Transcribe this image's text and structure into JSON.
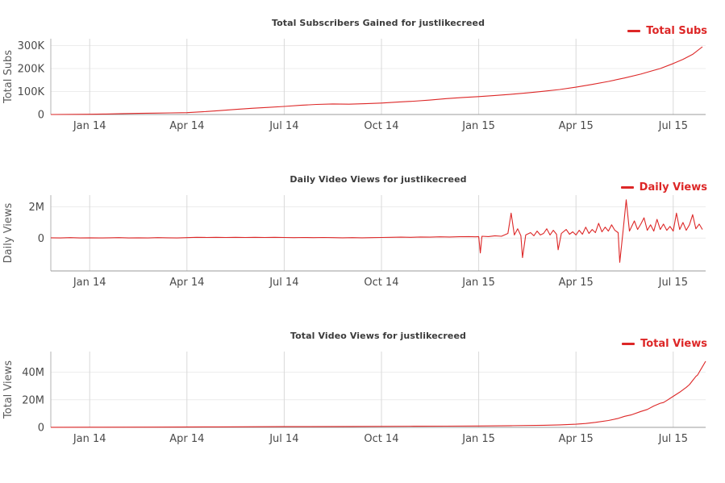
{
  "page": {
    "background": "#ffffff",
    "accent_red": "#dd2727",
    "channel": "justlikecreed"
  },
  "x_axis": {
    "domain_months": [
      -1.2,
      19.0
    ],
    "ticks": [
      {
        "m": 0,
        "label": "Jan 14"
      },
      {
        "m": 3,
        "label": "Apr 14"
      },
      {
        "m": 6,
        "label": "Jul 14"
      },
      {
        "m": 9,
        "label": "Oct 14"
      },
      {
        "m": 12,
        "label": "Jan 15"
      },
      {
        "m": 15,
        "label": "Apr 15"
      },
      {
        "m": 18,
        "label": "Jul 15"
      }
    ]
  },
  "chart_data": [
    {
      "id": "total-subs",
      "type": "line",
      "title": "Total Subscribers Gained for justlikecreed",
      "ylabel": "Total Subs",
      "legend_label": "Total Subs",
      "color": "#dd2727",
      "point_unit": "thousands of subscribers",
      "ymin": 0,
      "ymax": 330,
      "y_ticks": [
        {
          "v": 0,
          "label": "0"
        },
        {
          "v": 100,
          "label": "100K"
        },
        {
          "v": 200,
          "label": "200K"
        },
        {
          "v": 300,
          "label": "300K"
        }
      ],
      "points": [
        [
          -1.2,
          0
        ],
        [
          0,
          1
        ],
        [
          0.5,
          2
        ],
        [
          1,
          4
        ],
        [
          1.5,
          5
        ],
        [
          2,
          6
        ],
        [
          2.5,
          7
        ],
        [
          3,
          8
        ],
        [
          3.5,
          12
        ],
        [
          4,
          17
        ],
        [
          4.5,
          22
        ],
        [
          5,
          27
        ],
        [
          5.5,
          31
        ],
        [
          6,
          35
        ],
        [
          6.5,
          40
        ],
        [
          7,
          44
        ],
        [
          7.5,
          46
        ],
        [
          8,
          45
        ],
        [
          8.5,
          47
        ],
        [
          9,
          50
        ],
        [
          9.5,
          54
        ],
        [
          10,
          58
        ],
        [
          10.5,
          63
        ],
        [
          11,
          69
        ],
        [
          11.5,
          74
        ],
        [
          12,
          78
        ],
        [
          12.5,
          83
        ],
        [
          13,
          88
        ],
        [
          13.5,
          94
        ],
        [
          14,
          101
        ],
        [
          14.5,
          109
        ],
        [
          15,
          119
        ],
        [
          15.5,
          131
        ],
        [
          16,
          144
        ],
        [
          16.5,
          159
        ],
        [
          17,
          176
        ],
        [
          17.3,
          188
        ],
        [
          17.6,
          200
        ],
        [
          18,
          222
        ],
        [
          18.3,
          240
        ],
        [
          18.6,
          262
        ],
        [
          18.9,
          295
        ]
      ]
    },
    {
      "id": "daily-views",
      "type": "line",
      "title": "Daily Video Views for justlikecreed",
      "ylabel": "Daily Views",
      "legend_label": "Daily Views",
      "color": "#dd2727",
      "point_unit": "millions of views per day",
      "ymin": -2.1,
      "ymax": 2.75,
      "y_ticks": [
        {
          "v": 0,
          "label": "0"
        },
        {
          "v": 2,
          "label": "2M"
        }
      ],
      "points": [
        [
          -1.2,
          0.02
        ],
        [
          -0.9,
          0.01
        ],
        [
          -0.6,
          0.03
        ],
        [
          -0.3,
          0.01
        ],
        [
          0,
          0.02
        ],
        [
          0.3,
          0.01
        ],
        [
          0.6,
          0.02
        ],
        [
          0.9,
          0.03
        ],
        [
          1.2,
          0.01
        ],
        [
          1.5,
          0.02
        ],
        [
          1.8,
          0.01
        ],
        [
          2.1,
          0.03
        ],
        [
          2.4,
          0.02
        ],
        [
          2.7,
          0.01
        ],
        [
          3,
          0.03
        ],
        [
          3.3,
          0.05
        ],
        [
          3.6,
          0.04
        ],
        [
          3.9,
          0.05
        ],
        [
          4.2,
          0.04
        ],
        [
          4.5,
          0.05
        ],
        [
          4.8,
          0.04
        ],
        [
          5.1,
          0.05
        ],
        [
          5.4,
          0.04
        ],
        [
          5.7,
          0.05
        ],
        [
          6,
          0.04
        ],
        [
          6.3,
          0.03
        ],
        [
          6.6,
          0.04
        ],
        [
          6.9,
          0.03
        ],
        [
          7.2,
          0.04
        ],
        [
          7.5,
          0.03
        ],
        [
          7.8,
          0.02
        ],
        [
          8.1,
          0.03
        ],
        [
          8.4,
          0.02
        ],
        [
          8.7,
          0.03
        ],
        [
          9,
          0.04
        ],
        [
          9.3,
          0.05
        ],
        [
          9.6,
          0.06
        ],
        [
          9.9,
          0.05
        ],
        [
          10.2,
          0.07
        ],
        [
          10.5,
          0.06
        ],
        [
          10.8,
          0.08
        ],
        [
          11.1,
          0.07
        ],
        [
          11.4,
          0.09
        ],
        [
          11.7,
          0.1
        ],
        [
          11.9,
          0.08
        ],
        [
          12.0,
          0.1
        ],
        [
          12.05,
          -0.95
        ],
        [
          12.1,
          0.12
        ],
        [
          12.3,
          0.1
        ],
        [
          12.5,
          0.15
        ],
        [
          12.7,
          0.12
        ],
        [
          12.9,
          0.3
        ],
        [
          13.0,
          1.6
        ],
        [
          13.1,
          0.2
        ],
        [
          13.2,
          0.6
        ],
        [
          13.3,
          0.15
        ],
        [
          13.35,
          -1.25
        ],
        [
          13.45,
          0.2
        ],
        [
          13.6,
          0.35
        ],
        [
          13.7,
          0.15
        ],
        [
          13.8,
          0.45
        ],
        [
          13.9,
          0.2
        ],
        [
          14.0,
          0.3
        ],
        [
          14.1,
          0.6
        ],
        [
          14.2,
          0.2
        ],
        [
          14.3,
          0.5
        ],
        [
          14.4,
          0.25
        ],
        [
          14.45,
          -0.75
        ],
        [
          14.55,
          0.3
        ],
        [
          14.7,
          0.55
        ],
        [
          14.8,
          0.25
        ],
        [
          14.9,
          0.4
        ],
        [
          15.0,
          0.2
        ],
        [
          15.1,
          0.5
        ],
        [
          15.2,
          0.25
        ],
        [
          15.3,
          0.7
        ],
        [
          15.4,
          0.3
        ],
        [
          15.5,
          0.55
        ],
        [
          15.6,
          0.35
        ],
        [
          15.7,
          0.95
        ],
        [
          15.8,
          0.4
        ],
        [
          15.9,
          0.7
        ],
        [
          16.0,
          0.45
        ],
        [
          16.1,
          0.85
        ],
        [
          16.2,
          0.5
        ],
        [
          16.3,
          0.35
        ],
        [
          16.35,
          -1.55
        ],
        [
          16.45,
          0.4
        ],
        [
          16.55,
          2.45
        ],
        [
          16.65,
          0.45
        ],
        [
          16.8,
          1.1
        ],
        [
          16.9,
          0.55
        ],
        [
          17.0,
          0.9
        ],
        [
          17.1,
          1.3
        ],
        [
          17.2,
          0.5
        ],
        [
          17.3,
          0.85
        ],
        [
          17.4,
          0.45
        ],
        [
          17.5,
          1.2
        ],
        [
          17.6,
          0.55
        ],
        [
          17.7,
          0.9
        ],
        [
          17.8,
          0.5
        ],
        [
          17.9,
          0.75
        ],
        [
          18.0,
          0.45
        ],
        [
          18.1,
          1.6
        ],
        [
          18.2,
          0.55
        ],
        [
          18.3,
          1.0
        ],
        [
          18.4,
          0.5
        ],
        [
          18.5,
          0.85
        ],
        [
          18.6,
          1.5
        ],
        [
          18.7,
          0.6
        ],
        [
          18.8,
          0.9
        ],
        [
          18.9,
          0.55
        ]
      ]
    },
    {
      "id": "total-views",
      "type": "line",
      "title": "Total Video Views for justlikecreed",
      "ylabel": "Total Views",
      "legend_label": "Total Views",
      "color": "#dd2727",
      "point_unit": "millions of views",
      "ymin": 0,
      "ymax": 55,
      "y_ticks": [
        {
          "v": 0,
          "label": "0"
        },
        {
          "v": 20,
          "label": "20M"
        },
        {
          "v": 40,
          "label": "40M"
        }
      ],
      "points": [
        [
          -1.2,
          0.05
        ],
        [
          0,
          0.1
        ],
        [
          2,
          0.2
        ],
        [
          4,
          0.35
        ],
        [
          6,
          0.5
        ],
        [
          8,
          0.65
        ],
        [
          10,
          0.8
        ],
        [
          11,
          0.9
        ],
        [
          12,
          1.0
        ],
        [
          13,
          1.2
        ],
        [
          14,
          1.5
        ],
        [
          14.5,
          1.8
        ],
        [
          15,
          2.3
        ],
        [
          15.3,
          2.8
        ],
        [
          15.6,
          3.6
        ],
        [
          16,
          5.0
        ],
        [
          16.3,
          6.5
        ],
        [
          16.5,
          8.0
        ],
        [
          16.7,
          9.0
        ],
        [
          17,
          11.5
        ],
        [
          17.2,
          13.0
        ],
        [
          17.4,
          15.5
        ],
        [
          17.6,
          17.5
        ],
        [
          17.7,
          18.0
        ],
        [
          17.8,
          19.5
        ],
        [
          18,
          22.5
        ],
        [
          18.2,
          25.5
        ],
        [
          18.4,
          29
        ],
        [
          18.5,
          31
        ],
        [
          18.6,
          34
        ],
        [
          18.7,
          37
        ],
        [
          18.75,
          38
        ],
        [
          18.8,
          40
        ],
        [
          18.85,
          42
        ],
        [
          18.9,
          44
        ],
        [
          19.0,
          48
        ]
      ]
    }
  ]
}
